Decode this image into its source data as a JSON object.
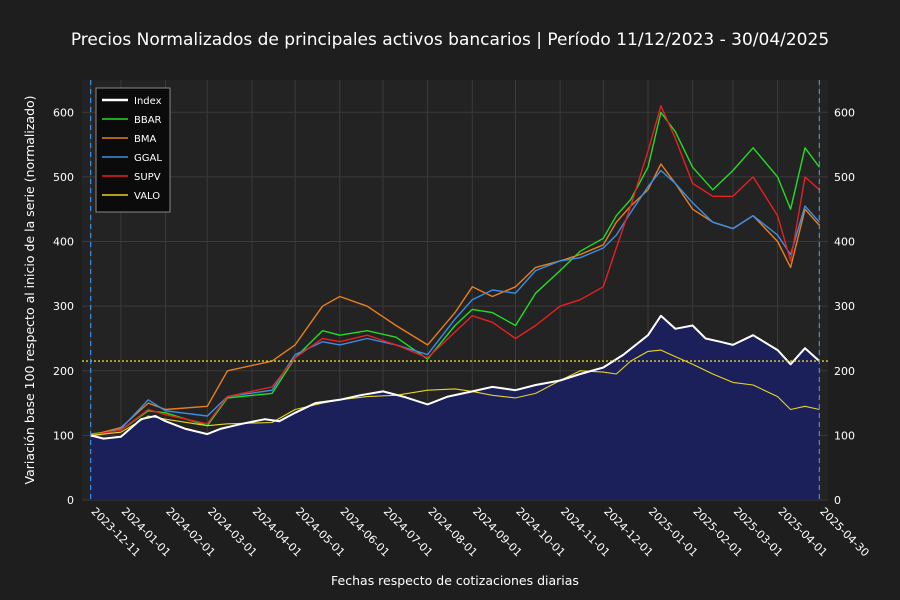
{
  "chart_data": {
    "type": "line",
    "title": "Precios Normalizados de principales activos bancarios | Período 11/12/2023 - 30/04/2025",
    "xlabel": "Fechas respecto de cotizaciones diarias",
    "ylabel": "Variación base 100 respecto al inicio de la serie (normalizado)",
    "x_ticks": [
      "2023-12-11",
      "2024-01-01",
      "2024-02-01",
      "2024-03-01",
      "2024-04-01",
      "2024-05-01",
      "2024-06-01",
      "2024-07-01",
      "2024-08-01",
      "2024-09-01",
      "2024-10-01",
      "2024-11-01",
      "2024-12-01",
      "2025-01-01",
      "2025-02-01",
      "2025-03-01",
      "2025-04-01",
      "2025-04-30"
    ],
    "y_ticks": [
      0,
      100,
      200,
      300,
      400,
      500,
      600
    ],
    "ylim": [
      0,
      650
    ],
    "xlim": [
      "2023-12-05",
      "2025-05-06"
    ],
    "grid": true,
    "legend_position": "top-left",
    "reference_line": {
      "y": 215,
      "color": "#e8d41c",
      "style": "dotted"
    },
    "vertical_markers": [
      "2023-12-11",
      "2025-04-30"
    ],
    "area_fill_series": "Index",
    "area_fill_color": "#1b1f5a",
    "series": [
      {
        "name": "Index",
        "color": "#ffffff",
        "width": 2,
        "points": [
          [
            "2023-12-11",
            100
          ],
          [
            "2023-12-20",
            95
          ],
          [
            "2024-01-01",
            98
          ],
          [
            "2024-01-15",
            125
          ],
          [
            "2024-01-25",
            130
          ],
          [
            "2024-02-01",
            122
          ],
          [
            "2024-02-15",
            110
          ],
          [
            "2024-03-01",
            102
          ],
          [
            "2024-03-10",
            110
          ],
          [
            "2024-03-25",
            118
          ],
          [
            "2024-04-10",
            125
          ],
          [
            "2024-04-20",
            122
          ],
          [
            "2024-05-01",
            135
          ],
          [
            "2024-05-15",
            150
          ],
          [
            "2024-06-01",
            155
          ],
          [
            "2024-06-15",
            162
          ],
          [
            "2024-07-01",
            168
          ],
          [
            "2024-07-15",
            160
          ],
          [
            "2024-08-01",
            148
          ],
          [
            "2024-08-15",
            160
          ],
          [
            "2024-09-01",
            168
          ],
          [
            "2024-09-15",
            175
          ],
          [
            "2024-10-01",
            170
          ],
          [
            "2024-10-15",
            178
          ],
          [
            "2024-11-01",
            185
          ],
          [
            "2024-11-15",
            195
          ],
          [
            "2024-12-01",
            205
          ],
          [
            "2024-12-15",
            225
          ],
          [
            "2025-01-01",
            255
          ],
          [
            "2025-01-10",
            285
          ],
          [
            "2025-01-20",
            265
          ],
          [
            "2025-02-01",
            270
          ],
          [
            "2025-02-10",
            250
          ],
          [
            "2025-02-20",
            245
          ],
          [
            "2025-03-01",
            240
          ],
          [
            "2025-03-15",
            255
          ],
          [
            "2025-04-01",
            232
          ],
          [
            "2025-04-10",
            210
          ],
          [
            "2025-04-20",
            235
          ],
          [
            "2025-04-30",
            215
          ]
        ]
      },
      {
        "name": "BBAR",
        "color": "#22dd22",
        "width": 1.4,
        "points": [
          [
            "2023-12-11",
            102
          ],
          [
            "2024-01-01",
            108
          ],
          [
            "2024-01-20",
            138
          ],
          [
            "2024-02-01",
            135
          ],
          [
            "2024-03-01",
            115
          ],
          [
            "2024-03-15",
            158
          ],
          [
            "2024-04-15",
            165
          ],
          [
            "2024-05-01",
            220
          ],
          [
            "2024-05-20",
            262
          ],
          [
            "2024-06-01",
            255
          ],
          [
            "2024-06-20",
            262
          ],
          [
            "2024-07-10",
            252
          ],
          [
            "2024-08-01",
            218
          ],
          [
            "2024-08-20",
            270
          ],
          [
            "2024-09-01",
            295
          ],
          [
            "2024-09-15",
            290
          ],
          [
            "2024-10-01",
            270
          ],
          [
            "2024-10-15",
            320
          ],
          [
            "2024-11-01",
            355
          ],
          [
            "2024-11-15",
            385
          ],
          [
            "2024-12-01",
            405
          ],
          [
            "2024-12-10",
            440
          ],
          [
            "2024-12-20",
            465
          ],
          [
            "2025-01-01",
            515
          ],
          [
            "2025-01-10",
            600
          ],
          [
            "2025-01-20",
            570
          ],
          [
            "2025-02-01",
            515
          ],
          [
            "2025-02-15",
            480
          ],
          [
            "2025-03-01",
            510
          ],
          [
            "2025-03-15",
            545
          ],
          [
            "2025-04-01",
            500
          ],
          [
            "2025-04-10",
            450
          ],
          [
            "2025-04-20",
            545
          ],
          [
            "2025-04-30",
            515
          ]
        ]
      },
      {
        "name": "BMA",
        "color": "#e87f1c",
        "width": 1.4,
        "points": [
          [
            "2023-12-11",
            100
          ],
          [
            "2024-01-01",
            112
          ],
          [
            "2024-01-20",
            150
          ],
          [
            "2024-02-01",
            140
          ],
          [
            "2024-03-01",
            145
          ],
          [
            "2024-03-15",
            200
          ],
          [
            "2024-04-15",
            215
          ],
          [
            "2024-05-01",
            240
          ],
          [
            "2024-05-20",
            300
          ],
          [
            "2024-06-01",
            315
          ],
          [
            "2024-06-20",
            300
          ],
          [
            "2024-07-10",
            270
          ],
          [
            "2024-08-01",
            240
          ],
          [
            "2024-08-20",
            290
          ],
          [
            "2024-09-01",
            330
          ],
          [
            "2024-09-15",
            315
          ],
          [
            "2024-10-01",
            330
          ],
          [
            "2024-10-15",
            360
          ],
          [
            "2024-11-01",
            370
          ],
          [
            "2024-11-15",
            380
          ],
          [
            "2024-12-01",
            395
          ],
          [
            "2024-12-10",
            430
          ],
          [
            "2024-12-20",
            455
          ],
          [
            "2025-01-01",
            480
          ],
          [
            "2025-01-10",
            520
          ],
          [
            "2025-01-20",
            490
          ],
          [
            "2025-02-01",
            450
          ],
          [
            "2025-02-15",
            430
          ],
          [
            "2025-03-01",
            420
          ],
          [
            "2025-03-15",
            440
          ],
          [
            "2025-04-01",
            400
          ],
          [
            "2025-04-10",
            360
          ],
          [
            "2025-04-20",
            450
          ],
          [
            "2025-04-30",
            425
          ]
        ]
      },
      {
        "name": "GGAL",
        "color": "#3b8ee8",
        "width": 1.4,
        "points": [
          [
            "2023-12-11",
            98
          ],
          [
            "2024-01-01",
            110
          ],
          [
            "2024-01-20",
            155
          ],
          [
            "2024-02-01",
            138
          ],
          [
            "2024-03-01",
            130
          ],
          [
            "2024-03-15",
            160
          ],
          [
            "2024-04-15",
            170
          ],
          [
            "2024-05-01",
            225
          ],
          [
            "2024-05-20",
            245
          ],
          [
            "2024-06-01",
            240
          ],
          [
            "2024-06-20",
            250
          ],
          [
            "2024-07-10",
            240
          ],
          [
            "2024-08-01",
            225
          ],
          [
            "2024-08-20",
            280
          ],
          [
            "2024-09-01",
            310
          ],
          [
            "2024-09-15",
            325
          ],
          [
            "2024-10-01",
            320
          ],
          [
            "2024-10-15",
            355
          ],
          [
            "2024-11-01",
            370
          ],
          [
            "2024-11-15",
            375
          ],
          [
            "2024-12-01",
            390
          ],
          [
            "2024-12-10",
            410
          ],
          [
            "2024-12-20",
            445
          ],
          [
            "2025-01-01",
            485
          ],
          [
            "2025-01-10",
            510
          ],
          [
            "2025-01-20",
            490
          ],
          [
            "2025-02-01",
            460
          ],
          [
            "2025-02-15",
            430
          ],
          [
            "2025-03-01",
            420
          ],
          [
            "2025-03-15",
            440
          ],
          [
            "2025-04-01",
            410
          ],
          [
            "2025-04-10",
            380
          ],
          [
            "2025-04-20",
            455
          ],
          [
            "2025-04-30",
            430
          ]
        ]
      },
      {
        "name": "SUPV",
        "color": "#e82020",
        "width": 1.4,
        "points": [
          [
            "2023-12-11",
            100
          ],
          [
            "2024-01-01",
            108
          ],
          [
            "2024-01-20",
            140
          ],
          [
            "2024-02-01",
            132
          ],
          [
            "2024-03-01",
            118
          ],
          [
            "2024-03-15",
            160
          ],
          [
            "2024-04-15",
            175
          ],
          [
            "2024-05-01",
            220
          ],
          [
            "2024-05-20",
            250
          ],
          [
            "2024-06-01",
            245
          ],
          [
            "2024-06-20",
            255
          ],
          [
            "2024-07-10",
            240
          ],
          [
            "2024-08-01",
            220
          ],
          [
            "2024-08-20",
            260
          ],
          [
            "2024-09-01",
            285
          ],
          [
            "2024-09-15",
            275
          ],
          [
            "2024-10-01",
            250
          ],
          [
            "2024-10-15",
            270
          ],
          [
            "2024-11-01",
            300
          ],
          [
            "2024-11-15",
            310
          ],
          [
            "2024-12-01",
            330
          ],
          [
            "2024-12-10",
            390
          ],
          [
            "2024-12-20",
            455
          ],
          [
            "2025-01-01",
            540
          ],
          [
            "2025-01-10",
            610
          ],
          [
            "2025-01-20",
            560
          ],
          [
            "2025-02-01",
            490
          ],
          [
            "2025-02-15",
            470
          ],
          [
            "2025-03-01",
            470
          ],
          [
            "2025-03-15",
            500
          ],
          [
            "2025-04-01",
            440
          ],
          [
            "2025-04-10",
            370
          ],
          [
            "2025-04-20",
            500
          ],
          [
            "2025-04-30",
            480
          ]
        ]
      },
      {
        "name": "VALO",
        "color": "#e8d41c",
        "width": 1.1,
        "points": [
          [
            "2023-12-11",
            100
          ],
          [
            "2024-01-01",
            105
          ],
          [
            "2024-01-20",
            130
          ],
          [
            "2024-02-01",
            125
          ],
          [
            "2024-03-01",
            115
          ],
          [
            "2024-03-15",
            118
          ],
          [
            "2024-04-15",
            120
          ],
          [
            "2024-05-01",
            140
          ],
          [
            "2024-05-20",
            150
          ],
          [
            "2024-06-01",
            155
          ],
          [
            "2024-06-20",
            160
          ],
          [
            "2024-07-10",
            162
          ],
          [
            "2024-08-01",
            170
          ],
          [
            "2024-08-20",
            172
          ],
          [
            "2024-09-01",
            168
          ],
          [
            "2024-09-15",
            162
          ],
          [
            "2024-10-01",
            158
          ],
          [
            "2024-10-15",
            165
          ],
          [
            "2024-11-01",
            185
          ],
          [
            "2024-11-15",
            200
          ],
          [
            "2024-12-01",
            198
          ],
          [
            "2024-12-10",
            195
          ],
          [
            "2024-12-20",
            215
          ],
          [
            "2025-01-01",
            230
          ],
          [
            "2025-01-10",
            232
          ],
          [
            "2025-01-20",
            222
          ],
          [
            "2025-02-01",
            210
          ],
          [
            "2025-02-15",
            195
          ],
          [
            "2025-03-01",
            182
          ],
          [
            "2025-03-15",
            178
          ],
          [
            "2025-04-01",
            160
          ],
          [
            "2025-04-10",
            140
          ],
          [
            "2025-04-20",
            145
          ],
          [
            "2025-04-30",
            140
          ]
        ]
      }
    ]
  }
}
